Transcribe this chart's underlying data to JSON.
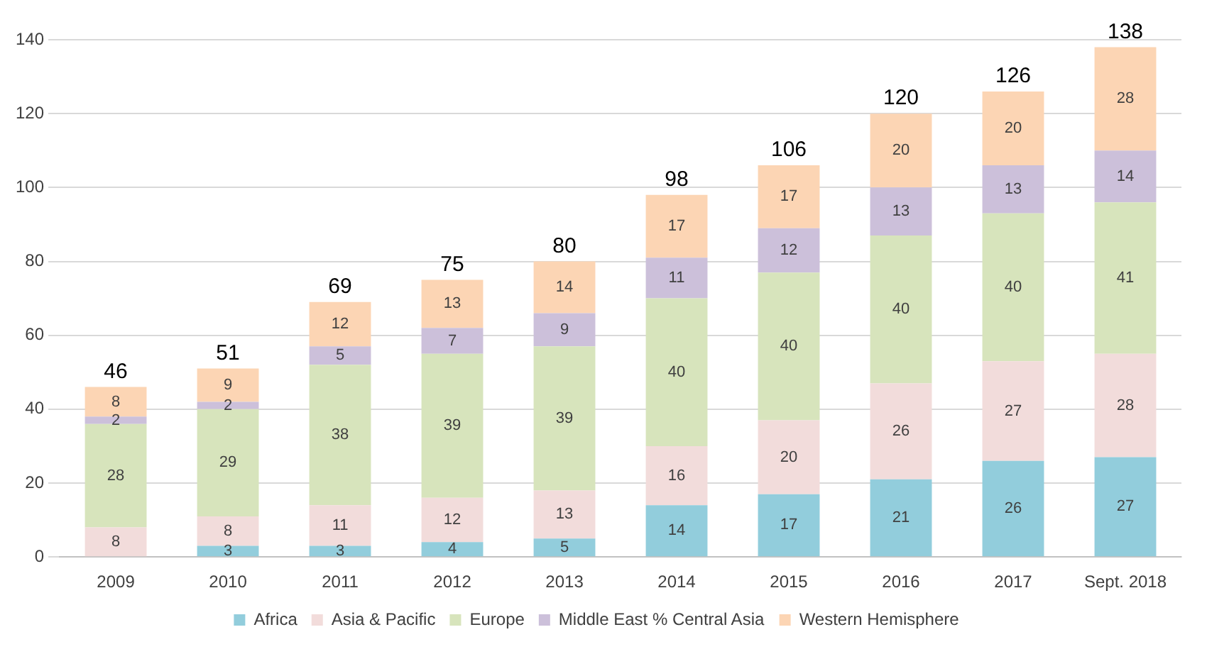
{
  "chart_data": {
    "type": "bar",
    "stacked": true,
    "categories": [
      "2009",
      "2010",
      "2011",
      "2012",
      "2013",
      "2014",
      "2015",
      "2016",
      "2017",
      "Sept. 2018"
    ],
    "series": [
      {
        "name": "Africa",
        "color": "#92cddc",
        "values": [
          null,
          3,
          3,
          4,
          5,
          14,
          17,
          21,
          26,
          27
        ]
      },
      {
        "name": "Asia & Pacific",
        "color": "#f2dcdb",
        "values": [
          8,
          8,
          11,
          12,
          13,
          16,
          20,
          26,
          27,
          28
        ]
      },
      {
        "name": "Europe",
        "color": "#d7e4bc",
        "values": [
          28,
          29,
          38,
          39,
          39,
          40,
          40,
          40,
          40,
          41
        ]
      },
      {
        "name": "Middle East % Central Asia",
        "color": "#ccc0da",
        "values": [
          2,
          2,
          5,
          7,
          9,
          11,
          12,
          13,
          13,
          14
        ]
      },
      {
        "name": "Western Hemisphere",
        "color": "#fcd5b4",
        "values": [
          8,
          9,
          12,
          13,
          14,
          17,
          17,
          20,
          20,
          28
        ]
      }
    ],
    "totals": [
      "46",
      "51",
      "69",
      "75",
      "80",
      "98",
      "106",
      "120",
      "126",
      "138"
    ],
    "data_labels": true,
    "ylim": [
      0,
      140
    ],
    "yticks": [
      0,
      20,
      40,
      60,
      80,
      100,
      120,
      140
    ],
    "grid": "y",
    "legend": "bottom"
  }
}
